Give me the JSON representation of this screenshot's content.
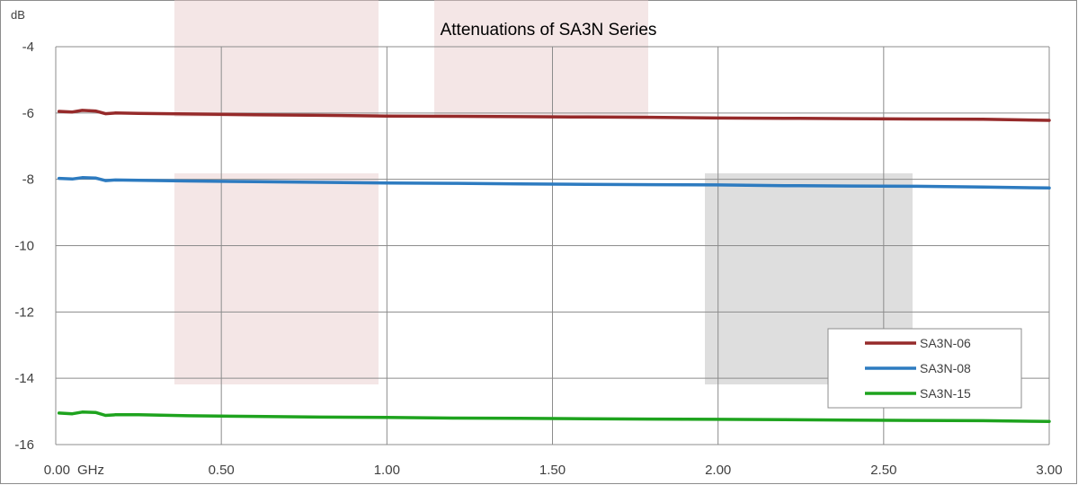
{
  "chart_data": {
    "type": "line",
    "title": "Attenuations of SA3N Series",
    "ylabel": "dB",
    "xlabel": "GHz",
    "xlim": [
      0,
      3
    ],
    "ylim": [
      -16,
      -4
    ],
    "x_ticks": [
      0,
      0.5,
      1.0,
      1.5,
      2.0,
      2.5,
      3.0
    ],
    "x_tick_labels": [
      "0.00",
      "0.50",
      "1.00",
      "1.50",
      "2.00",
      "2.50",
      "3.00"
    ],
    "y_ticks": [
      -4,
      -6,
      -8,
      -10,
      -12,
      -14,
      -16
    ],
    "y_tick_labels": [
      "-4",
      "-6",
      "-8",
      "-10",
      "-12",
      "-14",
      "-16"
    ],
    "grid": true,
    "legend_position": "bottom-right",
    "series": [
      {
        "name": "SA3N-06",
        "color": "#962A2A",
        "x": [
          0.01,
          0.05,
          0.08,
          0.12,
          0.15,
          0.18,
          0.25,
          0.4,
          0.6,
          0.8,
          1.0,
          1.2,
          1.4,
          1.6,
          1.8,
          2.0,
          2.2,
          2.4,
          2.6,
          2.8,
          3.0
        ],
        "y": [
          -5.95,
          -5.97,
          -5.92,
          -5.94,
          -6.02,
          -6.0,
          -6.01,
          -6.03,
          -6.05,
          -6.07,
          -6.09,
          -6.1,
          -6.11,
          -6.12,
          -6.13,
          -6.15,
          -6.16,
          -6.17,
          -6.18,
          -6.19,
          -6.22
        ]
      },
      {
        "name": "SA3N-08",
        "color": "#2D7BC0",
        "x": [
          0.01,
          0.05,
          0.08,
          0.12,
          0.15,
          0.18,
          0.25,
          0.4,
          0.6,
          0.8,
          1.0,
          1.2,
          1.4,
          1.6,
          1.8,
          2.0,
          2.2,
          2.4,
          2.6,
          2.8,
          3.0
        ],
        "y": [
          -7.97,
          -7.99,
          -7.95,
          -7.96,
          -8.04,
          -8.02,
          -8.03,
          -8.05,
          -8.07,
          -8.09,
          -8.11,
          -8.12,
          -8.14,
          -8.15,
          -8.16,
          -8.17,
          -8.19,
          -8.2,
          -8.21,
          -8.23,
          -8.26
        ]
      },
      {
        "name": "SA3N-15",
        "color": "#1EA31E",
        "x": [
          0.01,
          0.05,
          0.08,
          0.12,
          0.15,
          0.18,
          0.25,
          0.4,
          0.6,
          0.8,
          1.0,
          1.2,
          1.4,
          1.6,
          1.8,
          2.0,
          2.2,
          2.4,
          2.6,
          2.8,
          3.0
        ],
        "y": [
          -15.05,
          -15.07,
          -15.02,
          -15.03,
          -15.12,
          -15.1,
          -15.1,
          -15.13,
          -15.15,
          -15.17,
          -15.18,
          -15.2,
          -15.21,
          -15.22,
          -15.23,
          -15.24,
          -15.25,
          -15.26,
          -15.27,
          -15.28,
          -15.3
        ]
      }
    ]
  },
  "style": {
    "background": "#ffffff",
    "frame_color": "#8C8C8C",
    "grid_color": "#8C8C8C",
    "highlight_pink": "#E6C7C7",
    "highlight_gray": "#C8C8C8"
  }
}
